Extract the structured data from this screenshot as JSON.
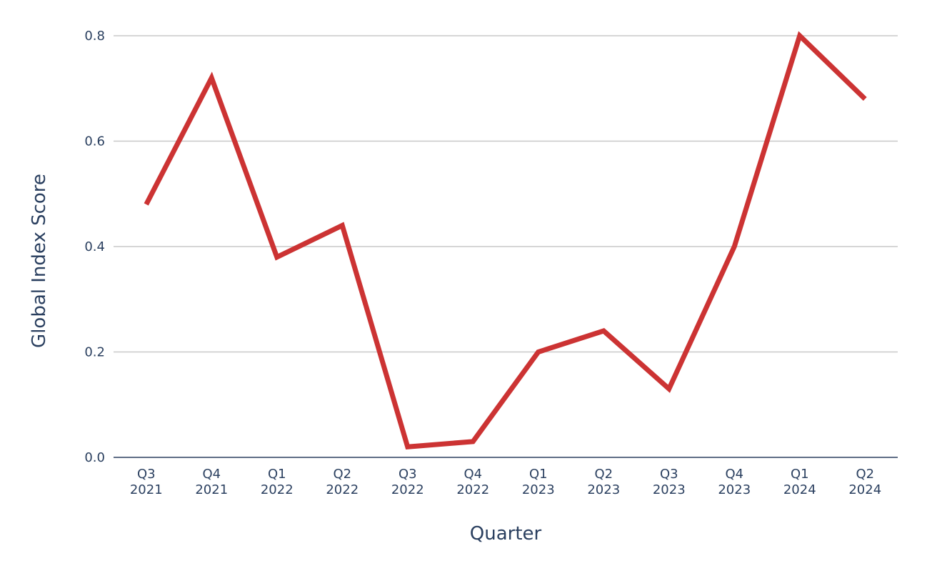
{
  "chart_data": {
    "type": "line",
    "categories": [
      "Q3 2021",
      "Q4 2021",
      "Q1 2022",
      "Q2 2022",
      "Q3 2022",
      "Q4 2022",
      "Q1 2023",
      "Q2 2023",
      "Q3 2023",
      "Q4 2023",
      "Q1 2024",
      "Q2 2024"
    ],
    "category_lines": [
      [
        "Q3",
        "2021"
      ],
      [
        "Q4",
        "2021"
      ],
      [
        "Q1",
        "2022"
      ],
      [
        "Q2",
        "2022"
      ],
      [
        "Q3",
        "2022"
      ],
      [
        "Q4",
        "2022"
      ],
      [
        "Q1",
        "2023"
      ],
      [
        "Q2",
        "2023"
      ],
      [
        "Q3",
        "2023"
      ],
      [
        "Q4",
        "2023"
      ],
      [
        "Q1",
        "2024"
      ],
      [
        "Q2",
        "2024"
      ]
    ],
    "series": [
      {
        "values": [
          0.48,
          0.72,
          0.38,
          0.44,
          0.02,
          0.03,
          0.2,
          0.24,
          0.13,
          0.4,
          0.8,
          0.68
        ],
        "color": "#cc3333"
      }
    ],
    "xlabel": "Quarter",
    "ylabel": "Global Index Score",
    "ylim": [
      0,
      0.8
    ],
    "yticks": [
      0,
      0.2,
      0.4,
      0.6,
      0.8
    ],
    "ytick_labels": [
      "0.0",
      "0.2",
      "0.4",
      "0.6",
      "0.8"
    ],
    "grid": true,
    "legend": "none",
    "gridline_color": "#c8c8c8",
    "axis_line_color": "#2a3f5f"
  }
}
